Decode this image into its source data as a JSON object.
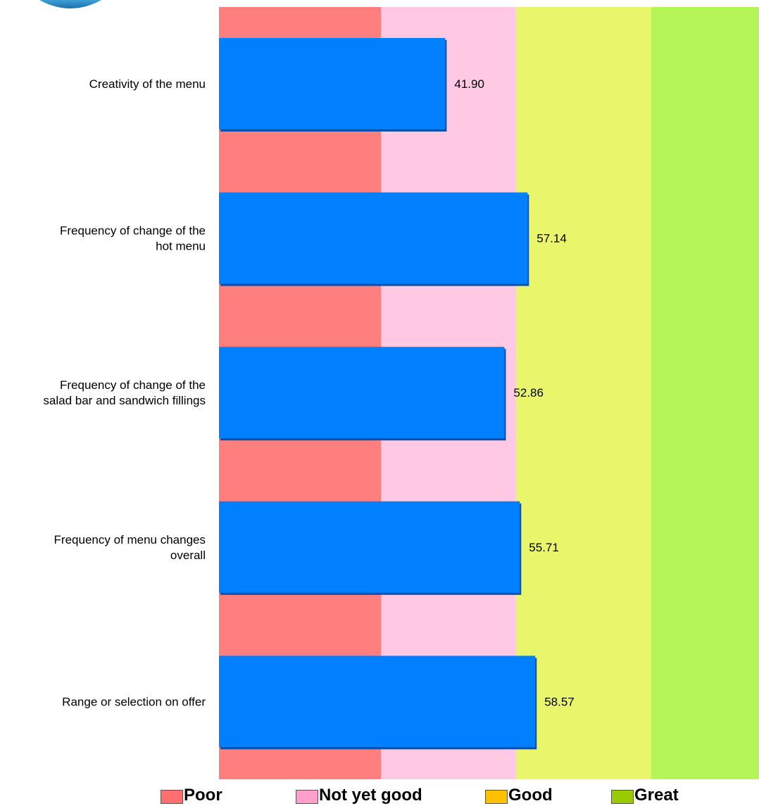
{
  "chart_data": {
    "type": "bar",
    "orientation": "horizontal",
    "categories": [
      [
        "Creativity of the menu"
      ],
      [
        "Frequency of change of the",
        "hot menu"
      ],
      [
        "Frequency of change of the",
        "salad bar and sandwich fillings"
      ],
      [
        "Frequency of menu changes",
        "overall"
      ],
      [
        "Range or selection on offer"
      ]
    ],
    "values": [
      41.9,
      57.14,
      52.86,
      55.71,
      58.57
    ],
    "value_labels": [
      "41.90",
      "57.14",
      "52.86",
      "55.71",
      "58.57"
    ],
    "xlim": [
      0,
      100
    ],
    "bands": [
      {
        "label": "Poor",
        "from": 0,
        "to": 30,
        "color": "#ff7f7f"
      },
      {
        "label": "Not yet good",
        "from": 30,
        "to": 55,
        "color": "#ffc8e3"
      },
      {
        "label": "Good",
        "from": 55,
        "to": 80,
        "color": "#e9f56a"
      },
      {
        "label": "Great",
        "from": 80,
        "to": 100,
        "color": "#b5f557"
      }
    ],
    "bar_color": "#007fff",
    "legend": {
      "position": "bottom",
      "entries": [
        {
          "label": "Poor",
          "color": "#ff6f6f"
        },
        {
          "label": "Not yet good",
          "color": "#ff9fcc"
        },
        {
          "label": "Good",
          "color": "#ffc000"
        },
        {
          "label": "Great",
          "color": "#99cc00"
        }
      ]
    }
  }
}
